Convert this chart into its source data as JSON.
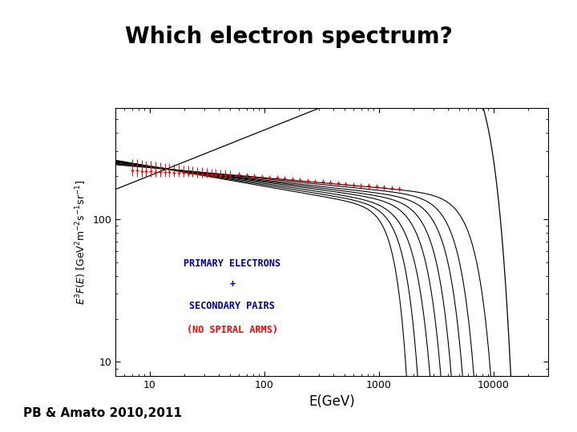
{
  "title": "Which electron spectrum?",
  "title_fontsize": 20,
  "title_fontweight": "bold",
  "xlabel": "E(GeV)",
  "ylabel": "E$^3$F(E)  [GeV$^2$m$^{-2}$s$^{-1}$sr$^{-1}$]",
  "xlim": [
    5,
    30000
  ],
  "ylim": [
    8,
    600
  ],
  "annotation_line1": "PRIMARY ELECTRONS",
  "annotation_line2": "+",
  "annotation_line3": "SECONDARY PAIRS",
  "annotation_line4": "(NO SPIRAL ARMS)",
  "annotation_color1": "darkblue",
  "annotation_color2": "red",
  "credit": "PB & Amato 2010,2011",
  "background_color": "#ffffff"
}
